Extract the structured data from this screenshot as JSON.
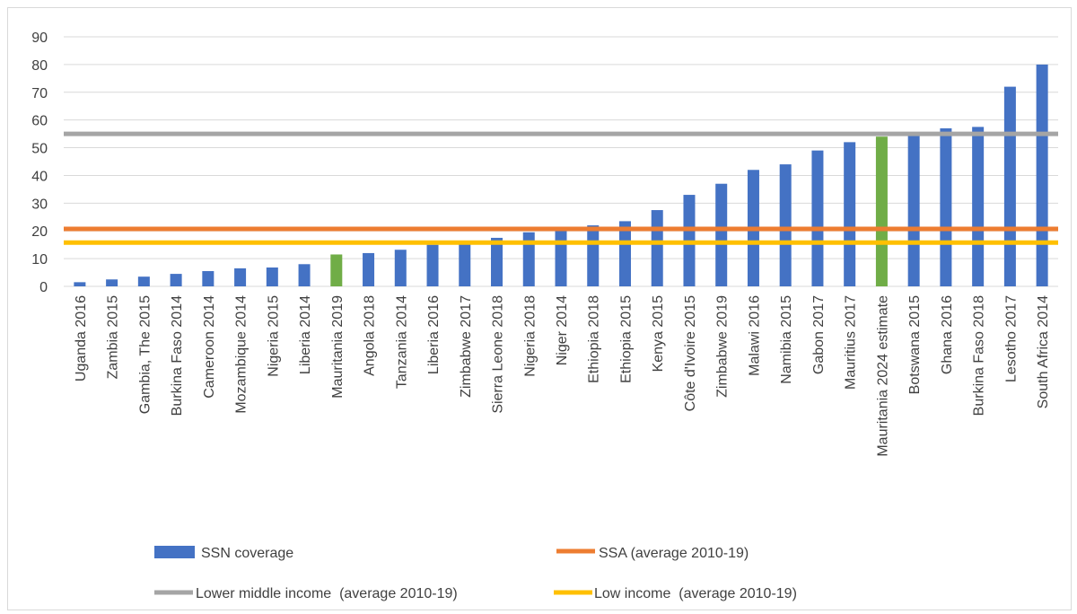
{
  "chart_data": {
    "type": "bar",
    "categories": [
      "Uganda 2016",
      "Zambia 2015",
      "Gambia, The 2015",
      "Burkina Faso 2014",
      "Cameroon 2014",
      "Mozambique 2014",
      "Nigeria 2015",
      "Liberia 2014",
      "Mauritania 2019",
      "Angola 2018",
      "Tanzania 2014",
      "Liberia 2016",
      "Zimbabwe 2017",
      "Sierra Leone 2018",
      "Nigeria 2018",
      "Niger 2014",
      "Ethiopia 2018",
      "Ethiopia 2015",
      "Kenya 2015",
      "Côte d'Ivoire 2015",
      "Zimbabwe 2019",
      "Malawi 2016",
      "Namibia 2015",
      "Gabon 2017",
      "Mauritius 2017",
      "Mauritania 2024 estimate",
      "Botswana 2015",
      "Ghana 2016",
      "Burkina Faso 2018",
      "Lesotho 2017",
      "South Africa 2014"
    ],
    "series": [
      {
        "name": "SSN coverage",
        "color": "#4472C4",
        "values": [
          1.5,
          2.5,
          3.5,
          4.5,
          5.5,
          6.5,
          6.8,
          8,
          11.5,
          12,
          13.2,
          15,
          15.7,
          17.5,
          19.5,
          20,
          22,
          23.5,
          27.5,
          33,
          37,
          42,
          44,
          49,
          52,
          54,
          55,
          57,
          57.5,
          72,
          80
        ]
      }
    ],
    "highlight": {
      "color": "#70AD47",
      "categories": [
        "Mauritania 2019",
        "Mauritania 2024 estimate"
      ]
    },
    "reference_lines": [
      {
        "name": "SSA (average 2010-19)",
        "value": 20.7,
        "color": "#ED7D31"
      },
      {
        "name": "Lower middle income  (average 2010-19)",
        "value": 55,
        "color": "#A5A5A5"
      },
      {
        "name": "Low income  (average 2010-19)",
        "value": 15.8,
        "color": "#FFC000"
      }
    ],
    "yticks": [
      "0",
      "10",
      "20",
      "30",
      "40",
      "50",
      "60",
      "70",
      "80",
      "90"
    ],
    "ylim": [
      0,
      90
    ],
    "grid": true,
    "legend_position": "bottom"
  }
}
